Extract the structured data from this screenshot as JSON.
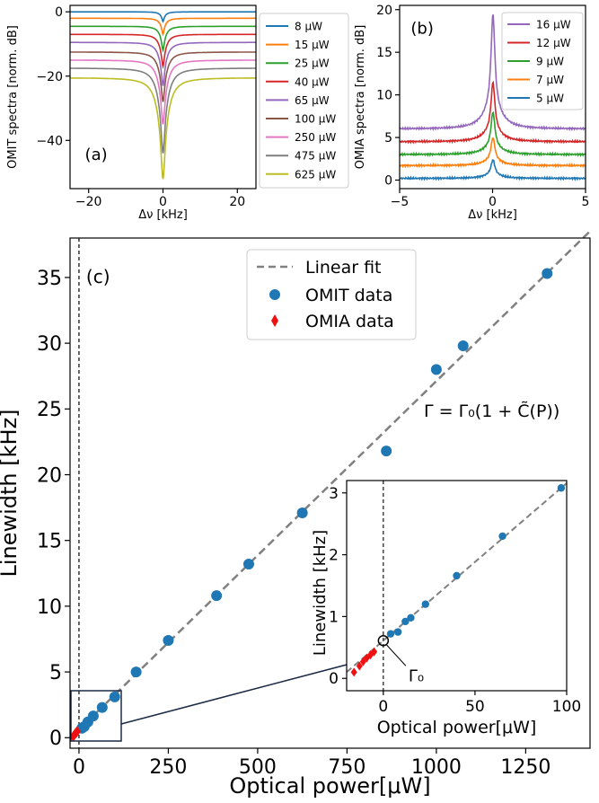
{
  "chart_data": [
    {
      "id": "a",
      "type": "line",
      "panel_label": "(a)",
      "xlabel": "Δν [kHz]",
      "ylabel": "OMIT spectra [norm. dB]",
      "xlim": [
        -25,
        25
      ],
      "ylim": [
        -55,
        2
      ],
      "xticks": [
        -20,
        0,
        20
      ],
      "yticks": [
        0,
        -20,
        -40
      ],
      "legend_position": "right-outside",
      "series": [
        {
          "name": "8  μW",
          "color": "#1f77b4",
          "baseline": 0,
          "dip": -3
        },
        {
          "name": "15  μW",
          "color": "#ff7f0e",
          "baseline": -2,
          "dip": -7
        },
        {
          "name": "25  μW",
          "color": "#2ca02c",
          "baseline": -4.5,
          "dip": -12
        },
        {
          "name": "40  μW",
          "color": "#d62728",
          "baseline": -7,
          "dip": -17
        },
        {
          "name": "65  μW",
          "color": "#9467bd",
          "baseline": -9.5,
          "dip": -23
        },
        {
          "name": "100  μW",
          "color": "#8c564b",
          "baseline": -12.5,
          "dip": -28
        },
        {
          "name": "250  μW",
          "color": "#e377c2",
          "baseline": -15,
          "dip": -35
        },
        {
          "name": "475  μW",
          "color": "#7f7f7f",
          "baseline": -17.5,
          "dip": -44
        },
        {
          "name": "625  μW",
          "color": "#bcbd22",
          "baseline": -20.5,
          "dip": -52
        }
      ]
    },
    {
      "id": "b",
      "type": "line",
      "panel_label": "(b)",
      "xlabel": "Δν [kHz]",
      "ylabel": "OMIA spectra [norm. dB]",
      "xlim": [
        -5,
        5
      ],
      "ylim": [
        -1,
        20.5
      ],
      "xticks": [
        -5,
        0,
        5
      ],
      "yticks": [
        0,
        5,
        10,
        15,
        20
      ],
      "legend_position": "upper-right",
      "series": [
        {
          "name": "16  μW",
          "color": "#9467bd",
          "baseline": 6,
          "peak": 19.5
        },
        {
          "name": "12  μW",
          "color": "#d62728",
          "baseline": 4.5,
          "peak": 11.5
        },
        {
          "name": "9  μW",
          "color": "#2ca02c",
          "baseline": 3,
          "peak": 8
        },
        {
          "name": "7  μW",
          "color": "#ff7f0e",
          "baseline": 1.7,
          "peak": 5
        },
        {
          "name": "5  μW",
          "color": "#1f77b4",
          "baseline": 0.2,
          "peak": 2.4
        }
      ]
    },
    {
      "id": "c",
      "type": "scatter",
      "panel_label": "(c)",
      "xlabel": "Optical power[μW]",
      "ylabel": "Linewidth [kHz]",
      "xlim": [
        -25,
        1430
      ],
      "ylim": [
        -0.8,
        38
      ],
      "xticks": [
        0,
        250,
        500,
        750,
        1000,
        1250
      ],
      "yticks": [
        0,
        5,
        10,
        15,
        20,
        25,
        30,
        35
      ],
      "annotation": "Γ = Γ₀(1 + C̃(P))",
      "legend": [
        "Linear fit",
        "OMIT data",
        "OMIA data"
      ],
      "fit": {
        "slope": 0.02651,
        "intercept": 0.61
      },
      "omit": {
        "x": [
          8,
          15,
          25,
          40,
          65,
          100,
          160,
          250,
          385,
          475,
          625,
          860,
          1000,
          1075,
          1310
        ],
        "y": [
          0.72,
          0.85,
          1.2,
          1.65,
          2.3,
          3.1,
          5.0,
          7.4,
          10.8,
          13.2,
          17.1,
          21.8,
          28.0,
          29.8,
          35.3
        ]
      },
      "omia": {
        "x": [
          -16,
          -12,
          -9,
          -7,
          -5
        ],
        "y": [
          0.1,
          0.25,
          0.35,
          0.4,
          0.48
        ]
      },
      "inset": {
        "xlabel": "Optical power[μW]",
        "ylabel": "Linewidth [kHz]",
        "xlim": [
          -20,
          100
        ],
        "ylim": [
          -0.2,
          3.2
        ],
        "xticks": [
          0,
          50,
          100
        ],
        "yticks": [
          0,
          1,
          2,
          3
        ],
        "gamma_label": "Γ₀",
        "omit": {
          "x": [
            4,
            8,
            12,
            15,
            23,
            40,
            65,
            97
          ],
          "y": [
            0.72,
            0.75,
            0.92,
            0.98,
            1.2,
            1.66,
            2.3,
            3.08
          ]
        },
        "omia": {
          "x": [
            -16,
            -13,
            -11,
            -9,
            -7,
            -5
          ],
          "y": [
            0.1,
            0.2,
            0.27,
            0.33,
            0.38,
            0.43
          ]
        }
      }
    }
  ]
}
